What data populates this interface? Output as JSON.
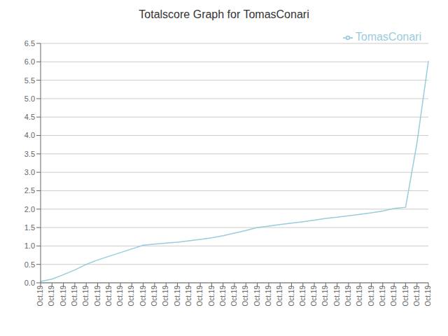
{
  "chart_data": {
    "type": "line",
    "title": "Totalscore Graph for TomasConari",
    "categories": [
      "Oct.19",
      "Oct.19",
      "Oct.19",
      "Oct.19",
      "Oct.19",
      "Oct.19",
      "Oct.19",
      "Oct.19",
      "Oct.19",
      "Oct.19",
      "Oct.19",
      "Oct.19",
      "Oct.19",
      "Oct.19",
      "Oct.19",
      "Oct.19",
      "Oct.19",
      "Oct.19",
      "Oct.19",
      "Oct.19",
      "Oct.19",
      "Oct.19",
      "Oct.19",
      "Oct.19",
      "Oct.19",
      "Oct.19",
      "Oct.19",
      "Oct.19",
      "Oct.19",
      "Oct.19",
      "Oct.19",
      "Oct.19",
      "Oct.19",
      "Oct.19",
      "Oct.19"
    ],
    "series": [
      {
        "name": "TomasConari",
        "color": "#99ccdd",
        "values": [
          0.04,
          0.1,
          0.22,
          0.35,
          0.5,
          0.62,
          0.72,
          0.82,
          0.92,
          1.02,
          1.05,
          1.08,
          1.1,
          1.14,
          1.18,
          1.22,
          1.28,
          1.35,
          1.42,
          1.5,
          1.54,
          1.58,
          1.62,
          1.66,
          1.7,
          1.75,
          1.78,
          1.82,
          1.86,
          1.9,
          1.95,
          2.02,
          2.05,
          3.8,
          6.02
        ]
      }
    ],
    "ylim": [
      0,
      6.5
    ],
    "yticks": [
      {
        "value": 0,
        "label": "0.0"
      },
      0.5,
      {
        "value": 1,
        "label": "1.0"
      },
      1.5,
      {
        "value": 2,
        "label": "2.0"
      },
      2.5,
      {
        "value": 3,
        "label": "3.0"
      },
      3.5,
      {
        "value": 4,
        "label": "4.0"
      },
      4.5,
      {
        "value": 5,
        "label": "5.0"
      },
      5.5,
      {
        "value": 6,
        "label": "6.0"
      },
      6.5
    ],
    "grid": true,
    "legend": "upper right"
  }
}
